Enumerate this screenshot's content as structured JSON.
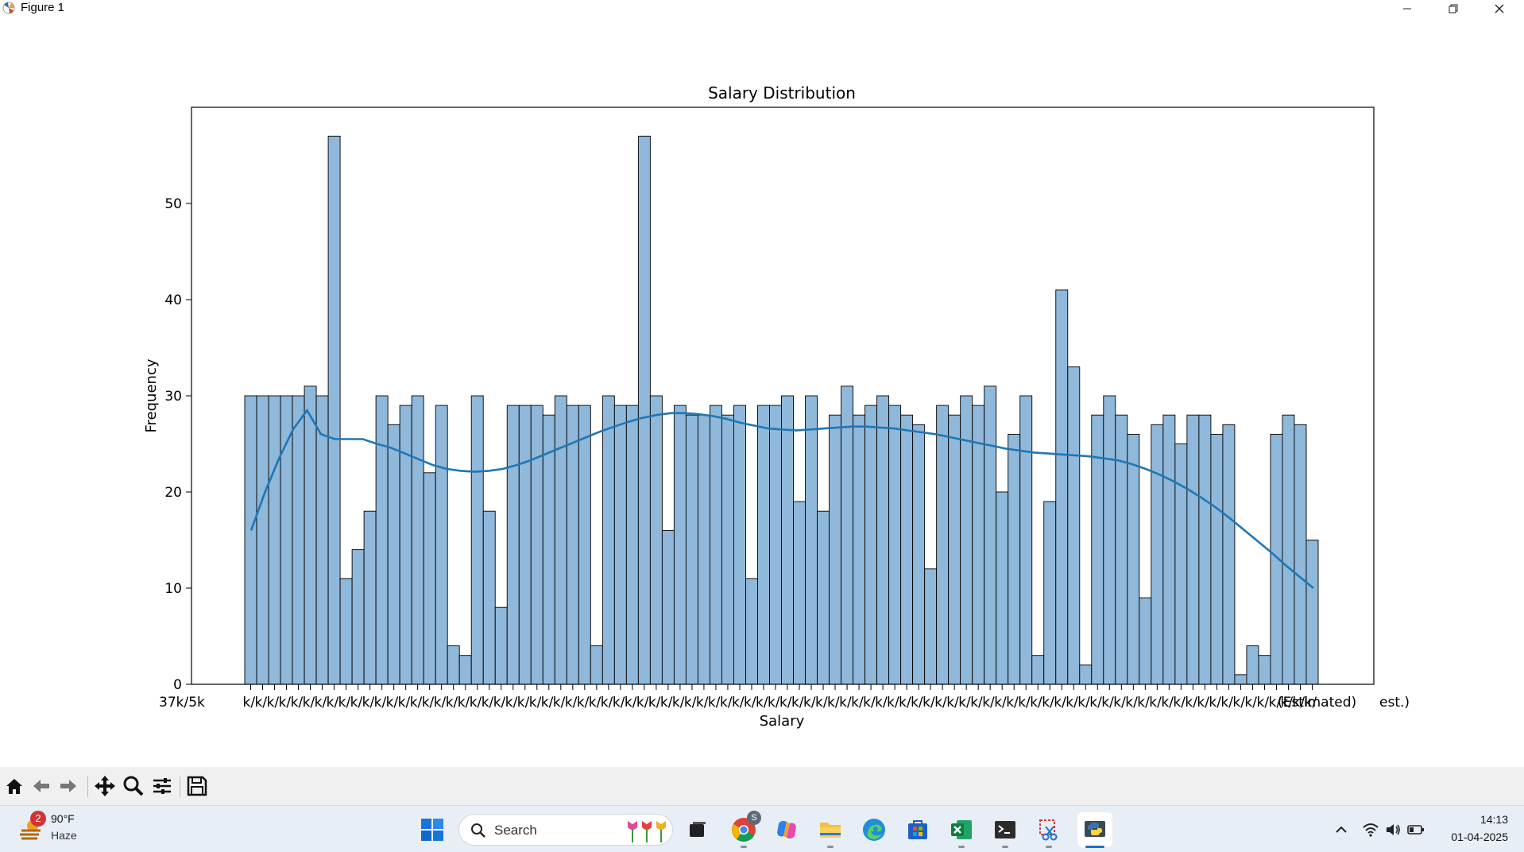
{
  "window": {
    "title": "Figure 1"
  },
  "chart_data": {
    "type": "bar",
    "title": "Salary Distribution",
    "xlabel": "Salary",
    "ylabel": "Frequency",
    "ylim": [
      0,
      60
    ],
    "yticks": [
      0,
      10,
      20,
      30,
      40,
      50
    ],
    "grid": false,
    "tick_labels_note": "Overlapping categorical tick labels; visible fragments",
    "tick_label_fragments": [
      "37k/5k",
      "(Estimated)",
      "est.)"
    ],
    "kde_line": true,
    "values": [
      30,
      30,
      30,
      30,
      30,
      31,
      30,
      57,
      11,
      14,
      18,
      30,
      27,
      29,
      30,
      22,
      29,
      4,
      3,
      30,
      18,
      8,
      29,
      29,
      29,
      28,
      30,
      29,
      29,
      4,
      30,
      29,
      29,
      57,
      30,
      16,
      29,
      28,
      28,
      29,
      28,
      29,
      11,
      29,
      29,
      30,
      19,
      30,
      18,
      28,
      31,
      28,
      29,
      30,
      29,
      28,
      27,
      12,
      29,
      28,
      30,
      29,
      31,
      20,
      26,
      30,
      3,
      19,
      41,
      33,
      2,
      28,
      30,
      28,
      26,
      9,
      27,
      28,
      25,
      28,
      28,
      26,
      27,
      1,
      4,
      3,
      26,
      28,
      27,
      15
    ],
    "kde": [
      16,
      20,
      23.5,
      26.5,
      28.5,
      26,
      25.5,
      25.5,
      25.5,
      25,
      24.6,
      24,
      23.4,
      22.8,
      22.4,
      22.2,
      22.1,
      22.2,
      22.4,
      22.8,
      23.3,
      23.9,
      24.5,
      25.1,
      25.7,
      26.3,
      26.8,
      27.3,
      27.7,
      28,
      28.2,
      28.2,
      28.1,
      27.9,
      27.6,
      27.2,
      26.9,
      26.6,
      26.5,
      26.4,
      26.5,
      26.6,
      26.7,
      26.8,
      26.8,
      26.7,
      26.6,
      26.4,
      26.2,
      26,
      25.7,
      25.4,
      25.1,
      24.8,
      24.5,
      24.3,
      24.1,
      24,
      23.9,
      23.8,
      23.7,
      23.5,
      23.3,
      22.9,
      22.4,
      21.8,
      21.1,
      20.3,
      19.4,
      18.4,
      17.3,
      16.1,
      14.9,
      13.7,
      12.4,
      11.2,
      10
    ],
    "color": "#1f77b4",
    "bar_fill": "#8fb8da"
  },
  "toolbar": {
    "icons": [
      "home-icon",
      "back-icon",
      "forward-icon",
      "pan-icon",
      "zoom-icon",
      "configure-icon",
      "save-icon"
    ]
  },
  "taskbar": {
    "weather_temp": "90°F",
    "weather_cond": "Haze",
    "weather_badge": "2",
    "search_label": "Search",
    "chrome_badge": "S",
    "time": "14:13",
    "date": "01-04-2025"
  }
}
